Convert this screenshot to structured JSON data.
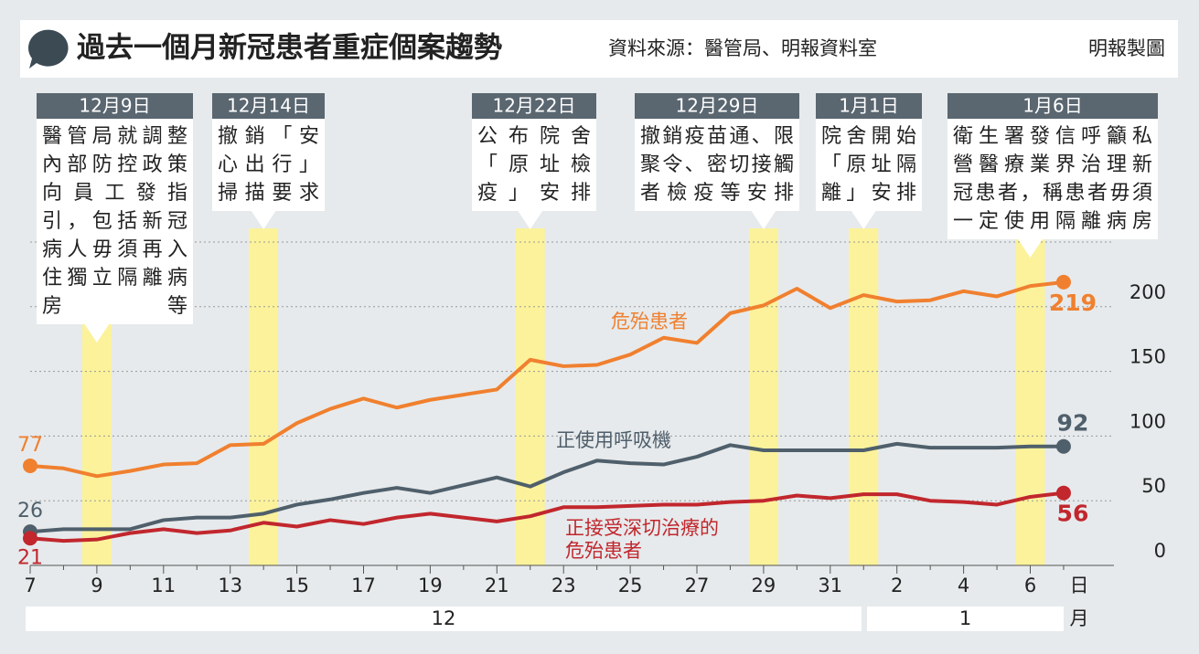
{
  "header": {
    "title": "過去一個月新冠患者重症個案趨勢",
    "source": "資料來源：醫管局、明報資料室",
    "credit": "明報製圖"
  },
  "chart_data": {
    "type": "line",
    "categories": [
      "7",
      null,
      "9",
      null,
      "11",
      null,
      "13",
      null,
      "15",
      null,
      "17",
      null,
      "19",
      null,
      "21",
      null,
      "23",
      null,
      "25",
      null,
      "27",
      null,
      "29",
      null,
      "31",
      null,
      "2",
      null,
      "4",
      null,
      "6",
      null
    ],
    "x_unit": "日",
    "months": [
      "12",
      "1"
    ],
    "month_unit": "月",
    "ylim": [
      0,
      250
    ],
    "yticks": [
      0,
      50,
      100,
      150,
      200
    ],
    "grid": true,
    "series": [
      {
        "name": "危殆患者",
        "color": "#f0802f",
        "values": [
          77,
          75,
          69,
          73,
          78,
          79,
          93,
          94,
          110,
          121,
          129,
          122,
          128,
          132,
          136,
          159,
          154,
          155,
          163,
          176,
          172,
          195,
          201,
          214,
          199,
          209,
          204,
          205,
          212,
          208,
          216,
          219
        ]
      },
      {
        "name": "正使用呼吸機",
        "color": "#4f5f6b",
        "values": [
          26,
          28,
          28,
          28,
          35,
          37,
          37,
          40,
          47,
          51,
          56,
          60,
          56,
          62,
          68,
          61,
          72,
          81,
          79,
          78,
          84,
          93,
          89,
          89,
          89,
          89,
          94,
          91,
          91,
          91,
          92,
          92
        ]
      },
      {
        "name": "正接受深切治療的危殆患者",
        "color": "#c1272d",
        "values": [
          21,
          19,
          20,
          25,
          28,
          25,
          27,
          33,
          30,
          35,
          32,
          37,
          40,
          37,
          34,
          38,
          45,
          45,
          46,
          47,
          47,
          49,
          50,
          54,
          52,
          55,
          55,
          50,
          49,
          47,
          53,
          56
        ]
      }
    ],
    "annotations": [
      {
        "date": "12月9日",
        "lines": [
          "醫管局就調整",
          "內部防控政策",
          "向員工發指",
          "引，包括新冠",
          "病人毋須再入",
          "住獨立隔離病",
          "房等"
        ]
      },
      {
        "date": "12月14日",
        "lines": [
          "撤銷「安",
          "心出行」",
          "掃描要求"
        ]
      },
      {
        "date": "12月22日",
        "lines": [
          "公布院舍",
          "「原址檢",
          "疫」安排"
        ]
      },
      {
        "date": "12月29日",
        "lines": [
          "撤銷疫苗通、限",
          "聚令、密切接觸",
          "者檢疫等安排"
        ]
      },
      {
        "date": "1月1日",
        "lines": [
          "院舍開始",
          "「原址隔",
          "離」安排"
        ]
      },
      {
        "date": "1月6日",
        "lines": [
          "衛生署發信呼籲私",
          "營醫療業界治理新",
          "冠患者，稱患者毋須",
          "一定使用隔離病房"
        ]
      }
    ]
  }
}
